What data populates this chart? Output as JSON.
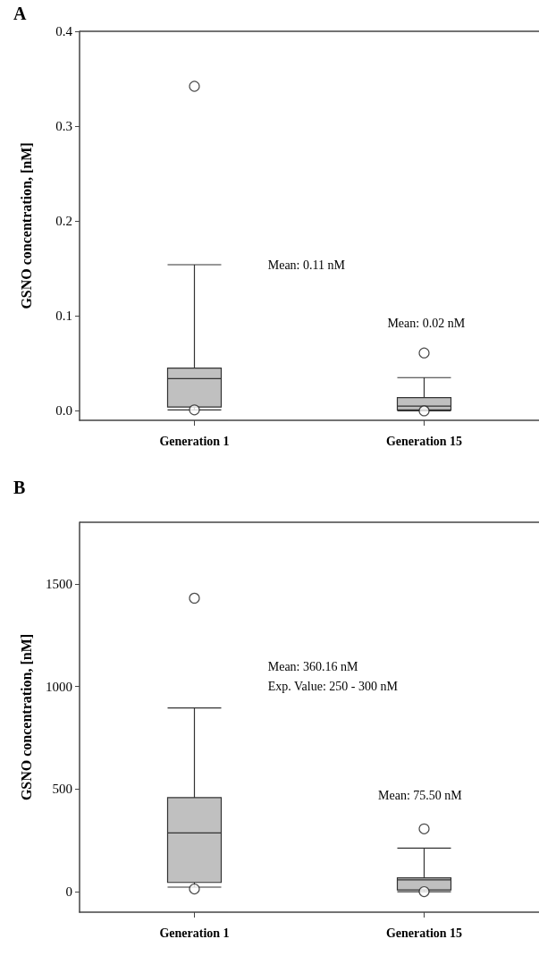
{
  "chart_data": [
    {
      "type": "box",
      "title": "A",
      "ylabel": "GSNO concentration, [nM]",
      "categories": [
        "Generation 1",
        "Generation 15"
      ],
      "color": "#c0c0c0",
      "marker": "circle",
      "grid": false,
      "boxes": [
        {
          "low": 0.001,
          "q1": 0.004,
          "median": 0.034,
          "q3": 0.045,
          "high": 0.154,
          "outliers": [
            0.342,
            0.001
          ]
        },
        {
          "low": 0.0,
          "q1": 0.001,
          "median": 0.005,
          "q3": 0.014,
          "high": 0.035,
          "outliers": [
            0.061,
            0.0
          ]
        }
      ],
      "ylim": [
        -0.01,
        0.4
      ],
      "yticks": [
        {
          "value": 0,
          "label": "0.0"
        },
        0.1,
        0.2,
        0.3,
        0.4
      ],
      "annotations": [
        "Mean: 0.11 nM",
        "Mean: 0.02 nM"
      ]
    },
    {
      "type": "box",
      "title": "B",
      "ylabel": "GSNO concentration, [nM]",
      "categories": [
        "Generation 1",
        "Generation 15"
      ],
      "color": "#c0c0c0",
      "marker": "circle",
      "grid": false,
      "boxes": [
        {
          "low": 22,
          "q1": 45,
          "median": 286,
          "q3": 458,
          "high": 895,
          "outliers": [
            1430,
            13
          ]
        },
        {
          "low": 0,
          "q1": 8,
          "median": 57,
          "q3": 67,
          "high": 212,
          "outliers": [
            306,
            0
          ]
        }
      ],
      "ylim": [
        -100,
        1800
      ],
      "yticks": [
        0,
        500,
        1000,
        1500
      ],
      "annotations": [
        "Mean: 360.16 nM",
        "Exp. Value: 250 - 300 nM",
        "Mean: 75.50 nM"
      ]
    }
  ]
}
